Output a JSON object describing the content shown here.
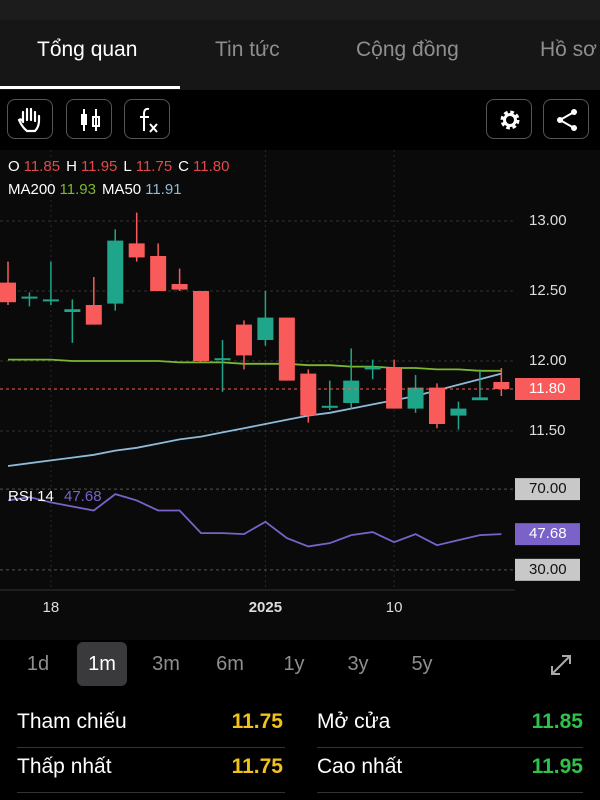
{
  "tabs": [
    "Tổng quan",
    "Tin tức",
    "Cộng đồng",
    "Hồ sơ"
  ],
  "ohlc_header": [
    {
      "label": "O",
      "value": "11.85"
    },
    {
      "label": "H",
      "value": "11.95"
    },
    {
      "label": "L",
      "value": "11.75"
    },
    {
      "label": "C",
      "value": "11.80"
    }
  ],
  "chart_data": [
    {
      "type": "candlestick",
      "categories": [
        null,
        null,
        "18",
        null,
        null,
        null,
        null,
        null,
        null,
        null,
        null,
        null,
        "2025",
        null,
        null,
        null,
        null,
        null,
        "10",
        null,
        null,
        null,
        null,
        null
      ],
      "open": [
        12.56,
        12.45,
        12.43,
        12.35,
        12.4,
        12.41,
        12.84,
        12.75,
        12.55,
        12.5,
        12.01,
        12.26,
        12.15,
        12.31,
        11.91,
        11.67,
        11.7,
        11.94,
        11.95,
        11.66,
        11.81,
        11.61,
        11.72,
        11.85
      ],
      "high": [
        12.71,
        12.49,
        12.71,
        12.44,
        12.6,
        12.94,
        13.06,
        12.84,
        12.66,
        12.5,
        12.15,
        12.29,
        12.5,
        12.31,
        11.94,
        11.86,
        12.09,
        12.01,
        12.01,
        11.9,
        11.84,
        11.71,
        11.94,
        11.95
      ],
      "low": [
        12.4,
        12.39,
        12.4,
        12.13,
        12.26,
        12.36,
        12.71,
        12.5,
        12.5,
        11.99,
        11.78,
        11.94,
        12.11,
        11.86,
        11.56,
        11.65,
        11.66,
        11.87,
        11.66,
        11.63,
        11.52,
        11.51,
        11.72,
        11.75
      ],
      "close": [
        12.42,
        12.46,
        12.44,
        12.37,
        12.26,
        12.86,
        12.74,
        12.5,
        12.51,
        12.0,
        12.02,
        12.04,
        12.31,
        11.86,
        11.61,
        11.68,
        11.86,
        11.96,
        11.66,
        11.81,
        11.55,
        11.66,
        11.74,
        11.8
      ],
      "up_color": "#1fa68a",
      "down_color": "#f95b5b",
      "series": [
        {
          "name": "MA200",
          "last_label": "11.93",
          "color": "#7cb82f",
          "values": [
            12.01,
            12.01,
            12.01,
            12.0,
            12.0,
            12.0,
            12.0,
            12.0,
            11.99,
            11.99,
            11.99,
            11.98,
            11.98,
            11.98,
            11.97,
            11.97,
            11.96,
            11.96,
            11.95,
            11.95,
            11.94,
            11.94,
            11.93,
            11.93
          ]
        },
        {
          "name": "MA50",
          "last_label": "11.91",
          "color": "#8fbad8",
          "values": [
            11.25,
            11.27,
            11.29,
            11.31,
            11.33,
            11.36,
            11.38,
            11.41,
            11.44,
            11.46,
            11.49,
            11.52,
            11.55,
            11.58,
            11.61,
            11.63,
            11.66,
            11.69,
            11.72,
            11.75,
            11.79,
            11.83,
            11.87,
            11.91
          ]
        }
      ],
      "last_price": {
        "value": 11.8,
        "label": "11.80"
      },
      "ylim": [
        11.1,
        13.2
      ],
      "yticks": [
        {
          "value": 11.5,
          "label": "11.50"
        },
        {
          "value": 12.0,
          "label": "12.00"
        },
        {
          "value": 12.5,
          "label": "12.50"
        },
        {
          "value": 13.0,
          "label": "13.00"
        }
      ]
    },
    {
      "type": "line",
      "series": [
        {
          "name": "RSI 14",
          "last_label": "47.68",
          "color": "#7a62c9",
          "values": [
            64.4,
            66.0,
            63.4,
            61.4,
            59.4,
            67.5,
            64.4,
            59.4,
            59.4,
            48.2,
            48.2,
            47.7,
            53.8,
            45.7,
            41.6,
            43.2,
            47.2,
            48.7,
            43.7,
            47.7,
            42.2,
            44.7,
            47.2,
            47.68
          ]
        }
      ],
      "ylim": [
        20,
        76
      ],
      "yticks": [
        {
          "value": 30,
          "label": "30.00"
        },
        {
          "value": 70,
          "label": "70.00"
        }
      ]
    }
  ],
  "ranges": [
    "1d",
    "1m",
    "3m",
    "6m",
    "1y",
    "3y",
    "5y"
  ],
  "stats": [
    {
      "label": "Tham chiếu",
      "value": "11.75",
      "color": "#f2c21a"
    },
    {
      "label": "Mở cửa",
      "value": "11.85",
      "color": "#2fc24a"
    },
    {
      "label": "Thấp nhất",
      "value": "11.75",
      "color": "#f2c21a"
    },
    {
      "label": "Cao nhất",
      "value": "11.95",
      "color": "#2fc24a"
    }
  ]
}
